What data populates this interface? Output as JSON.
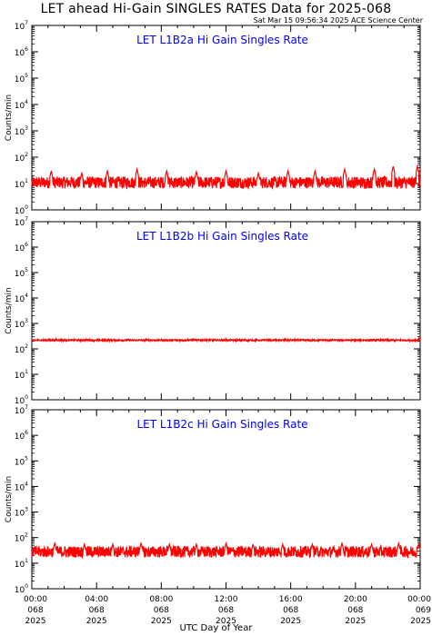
{
  "title": "LET ahead Hi-Gain SINGLES RATES Data for 2025-068",
  "timestamp": "Sat Mar 15 09:56:34 2025 ACE Science Center",
  "x_axis_title": "UTC Day of Year",
  "colors": {
    "data": "#ff0000",
    "panel_title": "#0000ff",
    "axes": "#000000"
  },
  "chart_data": [
    {
      "type": "line",
      "title": "LET L1B2a Hi Gain Singles Rate",
      "ylabel": "Counts/min",
      "yscale": "log",
      "ylim": [
        1,
        10000000
      ],
      "ytick_exponents": [
        0,
        1,
        2,
        3,
        4,
        5,
        6,
        7
      ],
      "xlim": [
        "2025-068 00:00",
        "2025-069 00:00"
      ],
      "series": [
        {
          "baseline": 11,
          "spikes": [
            {
              "time": "2025-068 01:12",
              "value": 30
            },
            {
              "time": "2025-068 03:05",
              "value": 25
            },
            {
              "time": "2025-068 04:40",
              "value": 30
            },
            {
              "time": "2025-068 06:30",
              "value": 35
            },
            {
              "time": "2025-068 08:20",
              "value": 30
            },
            {
              "time": "2025-068 10:10",
              "value": 28
            },
            {
              "time": "2025-068 12:00",
              "value": 30
            },
            {
              "time": "2025-068 14:00",
              "value": 25
            },
            {
              "time": "2025-068 15:50",
              "value": 30
            },
            {
              "time": "2025-068 17:30",
              "value": 30
            },
            {
              "time": "2025-068 19:20",
              "value": 35
            },
            {
              "time": "2025-068 21:10",
              "value": 35
            },
            {
              "time": "2025-068 22:20",
              "value": 45
            },
            {
              "time": "2025-068 23:50",
              "value": 45
            }
          ]
        }
      ]
    },
    {
      "type": "line",
      "title": "LET L1B2b Hi Gain Singles Rate",
      "ylabel": "Counts/min",
      "yscale": "log",
      "ylim": [
        1,
        10000000
      ],
      "ytick_exponents": [
        0,
        1,
        2,
        3,
        4,
        5,
        6,
        7
      ],
      "xlim": [
        "2025-068 00:00",
        "2025-069 00:00"
      ],
      "series": [
        {
          "baseline": 220,
          "spikes": [
            {
              "time": "2025-068 01:30",
              "value": 250
            },
            {
              "time": "2025-068 06:00",
              "value": 240
            },
            {
              "time": "2025-068 12:00",
              "value": 245
            },
            {
              "time": "2025-068 16:00",
              "value": 240
            },
            {
              "time": "2025-068 23:55",
              "value": 260
            }
          ]
        }
      ]
    },
    {
      "type": "line",
      "title": "LET L1B2c Hi Gain Singles Rate",
      "ylabel": "Counts/min",
      "yscale": "log",
      "ylim": [
        1,
        10000000
      ],
      "ytick_exponents": [
        0,
        1,
        2,
        3,
        4,
        5,
        6,
        7
      ],
      "xlim": [
        "2025-068 00:00",
        "2025-069 00:00"
      ],
      "series": [
        {
          "baseline": 28,
          "spikes": [
            {
              "time": "2025-068 01:25",
              "value": 60
            },
            {
              "time": "2025-068 03:15",
              "value": 55
            },
            {
              "time": "2025-068 05:00",
              "value": 55
            },
            {
              "time": "2025-068 06:45",
              "value": 60
            },
            {
              "time": "2025-068 08:30",
              "value": 55
            },
            {
              "time": "2025-068 10:10",
              "value": 55
            },
            {
              "time": "2025-068 12:00",
              "value": 60
            },
            {
              "time": "2025-068 13:40",
              "value": 55
            },
            {
              "time": "2025-068 15:30",
              "value": 55
            },
            {
              "time": "2025-068 17:20",
              "value": 55
            },
            {
              "time": "2025-068 19:10",
              "value": 60
            },
            {
              "time": "2025-068 21:00",
              "value": 55
            },
            {
              "time": "2025-068 22:40",
              "value": 60
            },
            {
              "time": "2025-068 23:55",
              "value": 55
            }
          ]
        }
      ]
    }
  ],
  "x_ticks": [
    {
      "time": "00:00",
      "day": "068",
      "year": "2025"
    },
    {
      "time": "04:00",
      "day": "068",
      "year": "2025"
    },
    {
      "time": "08:00",
      "day": "068",
      "year": "2025"
    },
    {
      "time": "12:00",
      "day": "068",
      "year": "2025"
    },
    {
      "time": "16:00",
      "day": "068",
      "year": "2025"
    },
    {
      "time": "20:00",
      "day": "068",
      "year": "2025"
    },
    {
      "time": "00:00",
      "day": "069",
      "year": "2025"
    }
  ]
}
